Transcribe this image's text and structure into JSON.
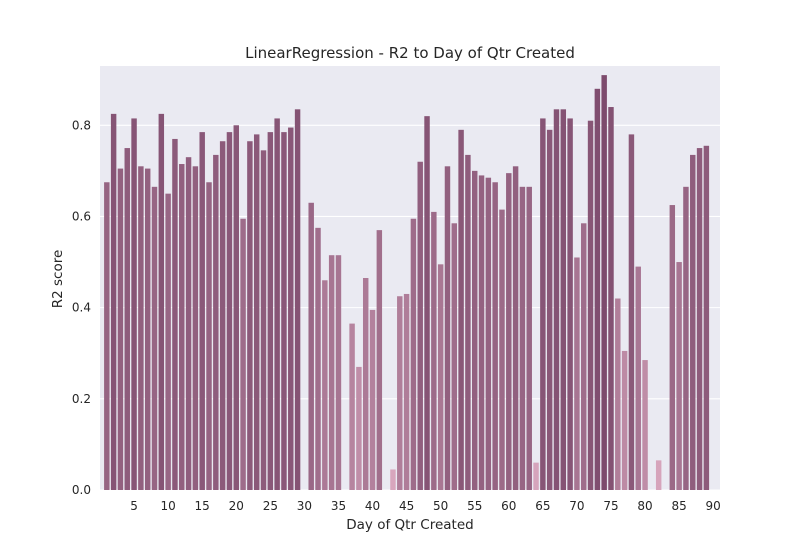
{
  "chart_data": {
    "type": "bar",
    "title": "LinearRegression - R2 to Day of Qtr Created",
    "xlabel": "Day of Qtr Created",
    "ylabel": "R2 score",
    "ylim": [
      0,
      0.93
    ],
    "xlim": [
      0,
      91
    ],
    "x_ticks": [
      5,
      10,
      15,
      20,
      25,
      30,
      35,
      40,
      45,
      50,
      55,
      60,
      65,
      70,
      75,
      80,
      85,
      90
    ],
    "y_ticks": [
      0.0,
      0.2,
      0.4,
      0.6,
      0.8
    ],
    "y_tick_labels": [
      "0.0",
      "0.2",
      "0.4",
      "0.6",
      "0.8"
    ],
    "grid": true,
    "background_color": "#eaeaf2",
    "palette": {
      "low": "#d8a6bd",
      "high": "#7d4b6d"
    },
    "x": [
      1,
      2,
      3,
      4,
      5,
      6,
      7,
      8,
      9,
      10,
      11,
      12,
      13,
      14,
      15,
      16,
      17,
      18,
      19,
      20,
      21,
      22,
      23,
      24,
      25,
      26,
      27,
      28,
      29,
      30,
      31,
      32,
      33,
      34,
      35,
      36,
      37,
      38,
      39,
      40,
      41,
      42,
      43,
      44,
      45,
      46,
      47,
      48,
      49,
      50,
      51,
      52,
      53,
      54,
      55,
      56,
      57,
      58,
      59,
      60,
      61,
      62,
      63,
      64,
      65,
      66,
      67,
      68,
      69,
      70,
      71,
      72,
      73,
      74,
      75,
      76,
      77,
      78,
      79,
      80,
      81,
      82,
      83,
      84,
      85,
      86,
      87,
      88,
      89
    ],
    "values": [
      0.675,
      0.825,
      0.705,
      0.75,
      0.815,
      0.71,
      0.705,
      0.665,
      0.825,
      0.65,
      0.77,
      0.715,
      0.73,
      0.71,
      0.785,
      0.675,
      0.735,
      0.765,
      0.785,
      0.8,
      0.595,
      0.765,
      0.78,
      0.745,
      0.785,
      0.815,
      0.785,
      0.795,
      0.835,
      0,
      0.63,
      0.575,
      0.46,
      0.515,
      0.515,
      0,
      0.365,
      0.27,
      0.465,
      0.395,
      0.57,
      0,
      0.045,
      0.425,
      0.43,
      0.595,
      0.72,
      0.82,
      0.61,
      0.495,
      0.71,
      0.585,
      0.79,
      0.735,
      0.7,
      0.69,
      0.685,
      0.675,
      0.615,
      0.695,
      0.71,
      0.665,
      0.665,
      0.06,
      0.815,
      0.79,
      0.835,
      0.835,
      0.815,
      0.51,
      0.585,
      0.81,
      0.88,
      0.91,
      0.84,
      0.42,
      0.305,
      0.78,
      0.49,
      0.285,
      0,
      0.065,
      0,
      0.625,
      0.5,
      0.665,
      0.735,
      0.75,
      0.755
    ]
  }
}
